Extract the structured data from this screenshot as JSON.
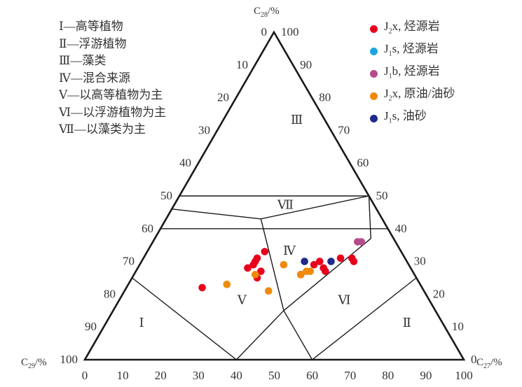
{
  "chart_data": {
    "type": "scatter",
    "subtype": "ternary",
    "axes": {
      "top": "C28/%",
      "left": "C29/%",
      "right": "C27/%"
    },
    "ticks": [
      "0",
      "10",
      "20",
      "30",
      "40",
      "50",
      "60",
      "70",
      "80",
      "90",
      "100"
    ],
    "regions": [
      "Ⅰ",
      "Ⅱ",
      "Ⅲ",
      "Ⅳ",
      "Ⅴ",
      "Ⅵ",
      "Ⅶ"
    ],
    "region_legend": [
      "Ⅰ—高等植物",
      "Ⅱ—浮游植物",
      "Ⅲ—藻类",
      "Ⅳ—混合来源",
      "Ⅴ—以高等植物为主",
      "Ⅵ—以浮游植物为主",
      "Ⅶ—以藻类为主"
    ],
    "series": [
      {
        "name": "J2x, 烃源岩",
        "color": "#e8001c",
        "points": [
          {
            "c27": 20,
            "c28": 22
          },
          {
            "c27": 31,
            "c28": 33
          },
          {
            "c27": 30,
            "c28": 31
          },
          {
            "c27": 30,
            "c28": 30
          },
          {
            "c27": 30,
            "c28": 29
          },
          {
            "c27": 29,
            "c28": 28
          },
          {
            "c27": 33,
            "c28": 27
          },
          {
            "c27": 33,
            "c28": 25
          },
          {
            "c27": 44,
            "c28": 26
          },
          {
            "c27": 46,
            "c28": 29
          },
          {
            "c27": 47,
            "c28": 30
          },
          {
            "c27": 49,
            "c28": 28
          },
          {
            "c27": 50,
            "c28": 27
          },
          {
            "c27": 52,
            "c28": 31
          },
          {
            "c27": 55,
            "c28": 31
          },
          {
            "c27": 56,
            "c28": 30
          }
        ]
      },
      {
        "name": "J1s, 烃源岩",
        "color": "#1ba6e1",
        "points": []
      },
      {
        "name": "J1b, 烃源岩",
        "color": "#b44c8c",
        "points": [
          {
            "c27": 54,
            "c28": 36
          },
          {
            "c27": 55,
            "c28": 36
          }
        ]
      },
      {
        "name": "J2x, 原油/油砂",
        "color": "#ef8a0a",
        "points": [
          {
            "c27": 26,
            "c28": 23
          },
          {
            "c27": 32,
            "c28": 26
          },
          {
            "c27": 38,
            "c28": 21
          },
          {
            "c27": 38,
            "c28": 29
          },
          {
            "c27": 44,
            "c28": 26
          },
          {
            "c27": 45,
            "c28": 27
          },
          {
            "c27": 46,
            "c28": 27
          }
        ]
      },
      {
        "name": "J1s, 油砂",
        "color": "#1f2a8c",
        "points": [
          {
            "c27": 43,
            "c28": 30
          },
          {
            "c27": 50,
            "c28": 30
          }
        ]
      }
    ]
  }
}
